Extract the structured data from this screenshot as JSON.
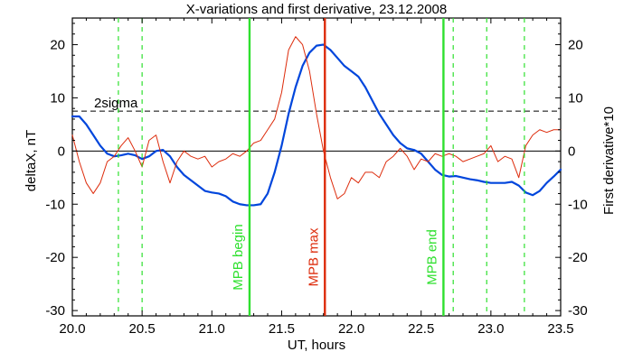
{
  "chart_data": {
    "type": "line",
    "title": "X-variations and first derivative, 23.12.2008",
    "xlabel": "UT, hours",
    "ylabel_left": "deltaX, nT",
    "ylabel_right": "First derivative*10",
    "xlim": [
      20.0,
      23.5
    ],
    "ylim": [
      -31,
      25
    ],
    "x_ticks": [
      20.0,
      20.5,
      21.0,
      21.5,
      22.0,
      22.5,
      23.0,
      23.5
    ],
    "x_tick_labels": [
      "20.0",
      "20.5",
      "21.0",
      "21.5",
      "22.0",
      "22.5",
      "23.0",
      "23.5"
    ],
    "y_ticks": [
      -30,
      -20,
      -10,
      0,
      10,
      20
    ],
    "y_tick_labels": [
      "-30",
      "-20",
      "-10",
      "0",
      "10",
      "20"
    ],
    "threshold": {
      "label": "2sigma",
      "value": 7.5
    },
    "zero_line": 0,
    "series": [
      {
        "key": "deltaX",
        "color": "#0046dc",
        "x": [
          20.0,
          20.05,
          20.1,
          20.15,
          20.2,
          20.25,
          20.3,
          20.35,
          20.4,
          20.45,
          20.5,
          20.55,
          20.6,
          20.65,
          20.7,
          20.75,
          20.8,
          20.85,
          20.9,
          20.95,
          21.0,
          21.05,
          21.1,
          21.15,
          21.2,
          21.25,
          21.3,
          21.35,
          21.4,
          21.45,
          21.5,
          21.55,
          21.6,
          21.65,
          21.7,
          21.75,
          21.8,
          21.85,
          21.9,
          21.95,
          22.0,
          22.05,
          22.1,
          22.15,
          22.2,
          22.25,
          22.3,
          22.35,
          22.4,
          22.45,
          22.5,
          22.55,
          22.6,
          22.65,
          22.7,
          22.75,
          22.8,
          22.85,
          22.9,
          22.95,
          23.0,
          23.05,
          23.1,
          23.15,
          23.2,
          23.25,
          23.3,
          23.35,
          23.4,
          23.45,
          23.5
        ],
        "values": [
          6.5,
          6.5,
          5.0,
          3.0,
          1.0,
          -0.5,
          -1.0,
          -0.8,
          -0.5,
          -0.8,
          -1.5,
          -1.0,
          0.0,
          0.2,
          -1.0,
          -3.0,
          -4.5,
          -5.5,
          -6.5,
          -7.5,
          -7.8,
          -8.0,
          -8.5,
          -9.5,
          -10.0,
          -10.2,
          -10.2,
          -10.0,
          -8.0,
          -4.0,
          1.0,
          7.0,
          12.0,
          16.0,
          18.5,
          19.8,
          20.0,
          19.0,
          17.5,
          16.0,
          15.0,
          14.0,
          12.0,
          9.5,
          7.0,
          5.0,
          3.0,
          1.5,
          0.5,
          0.2,
          -0.5,
          -2.0,
          -3.5,
          -4.5,
          -4.8,
          -4.7,
          -5.0,
          -5.3,
          -5.5,
          -5.8,
          -6.0,
          -6.0,
          -6.0,
          -5.8,
          -6.5,
          -7.8,
          -8.3,
          -7.5,
          -6.0,
          -4.8,
          -3.5
        ]
      },
      {
        "key": "derivative",
        "color": "#dd2c0c",
        "x": [
          20.0,
          20.05,
          20.1,
          20.15,
          20.2,
          20.25,
          20.3,
          20.35,
          20.4,
          20.45,
          20.5,
          20.55,
          20.6,
          20.65,
          20.7,
          20.75,
          20.8,
          20.85,
          20.9,
          20.95,
          21.0,
          21.05,
          21.1,
          21.15,
          21.2,
          21.25,
          21.3,
          21.35,
          21.4,
          21.45,
          21.5,
          21.55,
          21.6,
          21.65,
          21.7,
          21.75,
          21.8,
          21.85,
          21.9,
          21.95,
          22.0,
          22.05,
          22.1,
          22.15,
          22.2,
          22.25,
          22.3,
          22.35,
          22.4,
          22.45,
          22.5,
          22.55,
          22.6,
          22.65,
          22.7,
          22.75,
          22.8,
          22.85,
          22.9,
          22.95,
          23.0,
          23.05,
          23.1,
          23.15,
          23.2,
          23.25,
          23.3,
          23.35,
          23.4,
          23.45,
          23.5
        ],
        "values": [
          3.0,
          -2.0,
          -6.0,
          -8.0,
          -6.0,
          -2.0,
          -1.0,
          1.0,
          2.5,
          0.0,
          -3.0,
          2.0,
          3.0,
          -2.0,
          -6.0,
          -2.0,
          0.0,
          -1.0,
          -1.5,
          -1.0,
          -3.0,
          -2.0,
          -1.5,
          -0.5,
          -1.0,
          0.0,
          1.5,
          2.0,
          4.0,
          6.0,
          11.0,
          19.0,
          21.5,
          20.0,
          15.0,
          7.0,
          0.0,
          -5.0,
          -9.0,
          -8.0,
          -5.0,
          -6.0,
          -4.0,
          -4.0,
          -5.0,
          -2.0,
          -1.0,
          0.5,
          -1.0,
          -3.5,
          -1.5,
          -2.0,
          -0.5,
          -1.0,
          -0.5,
          -1.0,
          -2.0,
          -1.5,
          -1.0,
          -0.5,
          1.0,
          -2.0,
          -1.0,
          -1.5,
          -5.0,
          1.0,
          3.0,
          4.0,
          3.5,
          4.0,
          4.0
        ]
      }
    ],
    "vertical_markers": [
      {
        "key": "mpb_begin",
        "x": 21.27,
        "label": "MPB begin",
        "color": "#2fe02f",
        "style": "solid"
      },
      {
        "key": "mpb_max",
        "x": 21.81,
        "label": "MPB max",
        "color": "#dd2c0c",
        "style": "solid"
      },
      {
        "key": "mpb_end",
        "x": 22.66,
        "label": "MPB end",
        "color": "#2fe02f",
        "style": "solid"
      },
      {
        "key": "dash_1",
        "x": 20.33,
        "label": "",
        "color": "#2fe02f",
        "style": "dashed"
      },
      {
        "key": "dash_2",
        "x": 20.5,
        "label": "",
        "color": "#2fe02f",
        "style": "dashed"
      },
      {
        "key": "dash_3",
        "x": 22.73,
        "label": "",
        "color": "#2fe02f",
        "style": "dashed"
      },
      {
        "key": "dash_4",
        "x": 22.97,
        "label": "",
        "color": "#2fe02f",
        "style": "dashed"
      },
      {
        "key": "dash_5",
        "x": 23.24,
        "label": "",
        "color": "#2fe02f",
        "style": "dashed"
      }
    ]
  }
}
